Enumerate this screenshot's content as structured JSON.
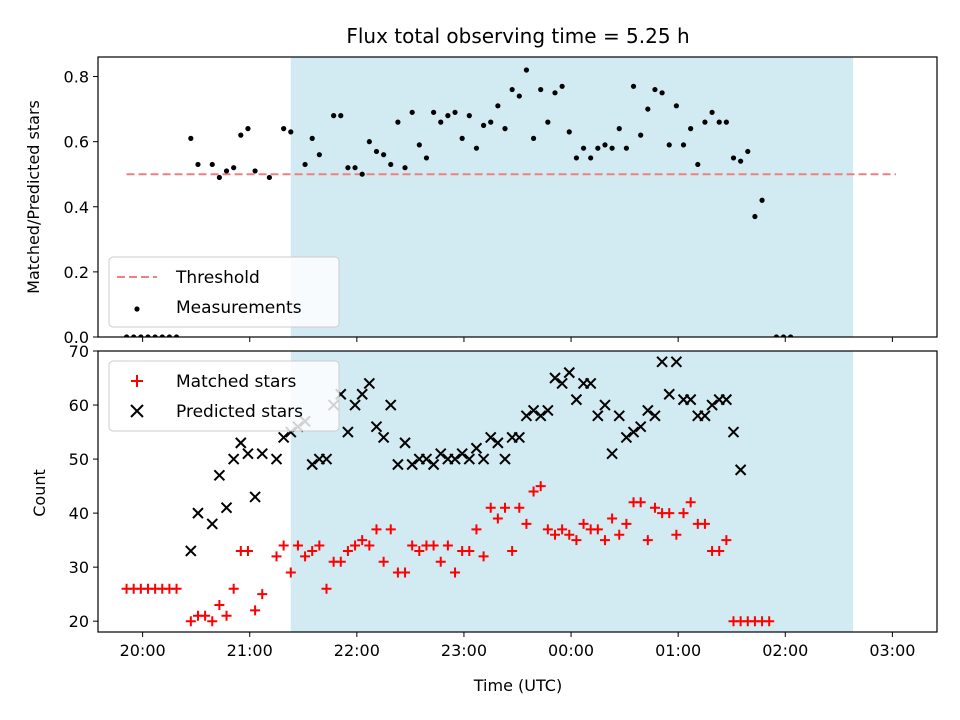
{
  "chart_data": [
    {
      "type": "scatter",
      "title": "Flux total observing time = 5.25 h",
      "xlabel": "",
      "ylabel": "Matched/Predicted stars",
      "xlim": [
        "19:35",
        "03:25"
      ],
      "ylim": [
        0,
        0.86
      ],
      "yticks": [
        "0.0",
        "0.2",
        "0.4",
        "0.6",
        "0.8"
      ],
      "yticks_values": [
        0,
        0.2,
        0.4,
        0.6,
        0.8
      ],
      "shaded_interval": [
        "21:23",
        "02:38"
      ],
      "shade_color": "#add8e6",
      "legend_position": "lower-left",
      "threshold": {
        "name": "Threshold",
        "value": 0.5,
        "x_range": [
          "19:51",
          "03:02"
        ],
        "color": "#f08080"
      },
      "series": [
        {
          "name": "Measurements",
          "color": "#000000",
          "marker": "dot",
          "points": [
            [
              "19:51",
              0
            ],
            [
              "19:55",
              0
            ],
            [
              "19:59",
              0
            ],
            [
              "20:03",
              0
            ],
            [
              "20:07",
              0
            ],
            [
              "20:11",
              0
            ],
            [
              "20:15",
              0
            ],
            [
              "20:19",
              0
            ],
            [
              "20:27",
              0.61
            ],
            [
              "20:31",
              0.53
            ],
            [
              "20:39",
              0.53
            ],
            [
              "20:43",
              0.49
            ],
            [
              "20:47",
              0.51
            ],
            [
              "20:51",
              0.52
            ],
            [
              "20:55",
              0.62
            ],
            [
              "20:59",
              0.64
            ],
            [
              "21:03",
              0.51
            ],
            [
              "21:11",
              0.49
            ],
            [
              "21:19",
              0.64
            ],
            [
              "21:23",
              0.63
            ],
            [
              "21:31",
              0.53
            ],
            [
              "21:35",
              0.61
            ],
            [
              "21:39",
              0.56
            ],
            [
              "21:47",
              0.68
            ],
            [
              "21:51",
              0.68
            ],
            [
              "21:55",
              0.52
            ],
            [
              "21:59",
              0.52
            ],
            [
              "22:03",
              0.5
            ],
            [
              "22:07",
              0.6
            ],
            [
              "22:11",
              0.57
            ],
            [
              "22:15",
              0.56
            ],
            [
              "22:19",
              0.53
            ],
            [
              "22:23",
              0.66
            ],
            [
              "22:27",
              0.52
            ],
            [
              "22:31",
              0.69
            ],
            [
              "22:35",
              0.59
            ],
            [
              "22:39",
              0.55
            ],
            [
              "22:43",
              0.69
            ],
            [
              "22:47",
              0.66
            ],
            [
              "22:51",
              0.68
            ],
            [
              "22:55",
              0.69
            ],
            [
              "22:59",
              0.61
            ],
            [
              "23:03",
              0.68
            ],
            [
              "23:07",
              0.58
            ],
            [
              "23:11",
              0.65
            ],
            [
              "23:15",
              0.66
            ],
            [
              "23:19",
              0.71
            ],
            [
              "23:23",
              0.64
            ],
            [
              "23:27",
              0.76
            ],
            [
              "23:31",
              0.74
            ],
            [
              "23:35",
              0.82
            ],
            [
              "23:39",
              0.61
            ],
            [
              "23:43",
              0.76
            ],
            [
              "23:47",
              0.66
            ],
            [
              "23:51",
              0.75
            ],
            [
              "23:55",
              0.77
            ],
            [
              "23:59",
              0.63
            ],
            [
              "00:03",
              0.55
            ],
            [
              "00:07",
              0.58
            ],
            [
              "00:11",
              0.55
            ],
            [
              "00:15",
              0.58
            ],
            [
              "00:19",
              0.59
            ],
            [
              "00:23",
              0.58
            ],
            [
              "00:27",
              0.64
            ],
            [
              "00:31",
              0.58
            ],
            [
              "00:35",
              0.77
            ],
            [
              "00:39",
              0.62
            ],
            [
              "00:43",
              0.7
            ],
            [
              "00:47",
              0.76
            ],
            [
              "00:51",
              0.75
            ],
            [
              "00:55",
              0.59
            ],
            [
              "00:59",
              0.71
            ],
            [
              "01:03",
              0.59
            ],
            [
              "01:07",
              0.64
            ],
            [
              "01:11",
              0.53
            ],
            [
              "01:15",
              0.66
            ],
            [
              "01:19",
              0.69
            ],
            [
              "01:23",
              0.66
            ],
            [
              "01:27",
              0.66
            ],
            [
              "01:31",
              0.55
            ],
            [
              "01:35",
              0.54
            ],
            [
              "01:39",
              0.57
            ],
            [
              "01:43",
              0.37
            ],
            [
              "01:47",
              0.42
            ],
            [
              "01:55",
              0
            ],
            [
              "01:59",
              0
            ],
            [
              "02:03",
              0
            ]
          ]
        }
      ]
    },
    {
      "type": "scatter",
      "title": "",
      "xlabel": "Time (UTC)",
      "ylabel": "Count",
      "xlim": [
        "19:35",
        "03:25"
      ],
      "ylim": [
        18,
        70
      ],
      "yticks": [
        "20",
        "30",
        "40",
        "50",
        "60",
        "70"
      ],
      "yticks_values": [
        20,
        30,
        40,
        50,
        60,
        70
      ],
      "xticks": [
        "20:00",
        "21:00",
        "22:00",
        "23:00",
        "00:00",
        "01:00",
        "02:00",
        "03:00"
      ],
      "shaded_interval": [
        "21:23",
        "02:38"
      ],
      "shade_color": "#add8e6",
      "legend_position": "upper-left",
      "series": [
        {
          "name": "Matched stars",
          "color": "#ff0000",
          "marker": "plus",
          "points": [
            [
              "19:51",
              26
            ],
            [
              "19:55",
              26
            ],
            [
              "19:59",
              26
            ],
            [
              "20:03",
              26
            ],
            [
              "20:07",
              26
            ],
            [
              "20:11",
              26
            ],
            [
              "20:15",
              26
            ],
            [
              "20:19",
              26
            ],
            [
              "20:27",
              20
            ],
            [
              "20:31",
              21
            ],
            [
              "20:35",
              21
            ],
            [
              "20:39",
              20
            ],
            [
              "20:43",
              23
            ],
            [
              "20:47",
              21
            ],
            [
              "20:51",
              26
            ],
            [
              "20:55",
              33
            ],
            [
              "20:59",
              33
            ],
            [
              "21:03",
              22
            ],
            [
              "21:07",
              25
            ],
            [
              "21:15",
              32
            ],
            [
              "21:19",
              34
            ],
            [
              "21:23",
              29
            ],
            [
              "21:27",
              34
            ],
            [
              "21:31",
              32
            ],
            [
              "21:35",
              33
            ],
            [
              "21:39",
              34
            ],
            [
              "21:43",
              26
            ],
            [
              "21:47",
              31
            ],
            [
              "21:51",
              31
            ],
            [
              "21:55",
              33
            ],
            [
              "21:59",
              34
            ],
            [
              "22:03",
              35
            ],
            [
              "22:07",
              34
            ],
            [
              "22:11",
              37
            ],
            [
              "22:15",
              31
            ],
            [
              "22:19",
              37
            ],
            [
              "22:23",
              29
            ],
            [
              "22:27",
              29
            ],
            [
              "22:31",
              34
            ],
            [
              "22:35",
              33
            ],
            [
              "22:39",
              34
            ],
            [
              "22:43",
              34
            ],
            [
              "22:47",
              31
            ],
            [
              "22:51",
              34
            ],
            [
              "22:55",
              29
            ],
            [
              "22:59",
              33
            ],
            [
              "23:03",
              33
            ],
            [
              "23:07",
              37
            ],
            [
              "23:11",
              32
            ],
            [
              "23:15",
              41
            ],
            [
              "23:19",
              39
            ],
            [
              "23:23",
              41
            ],
            [
              "23:27",
              33
            ],
            [
              "23:31",
              41
            ],
            [
              "23:35",
              38
            ],
            [
              "23:39",
              44
            ],
            [
              "23:43",
              45
            ],
            [
              "23:47",
              37
            ],
            [
              "23:51",
              36
            ],
            [
              "23:55",
              37
            ],
            [
              "23:59",
              36
            ],
            [
              "00:03",
              35
            ],
            [
              "00:07",
              38
            ],
            [
              "00:11",
              37
            ],
            [
              "00:15",
              37
            ],
            [
              "00:19",
              35
            ],
            [
              "00:23",
              39
            ],
            [
              "00:27",
              36
            ],
            [
              "00:31",
              38
            ],
            [
              "00:35",
              42
            ],
            [
              "00:39",
              42
            ],
            [
              "00:43",
              35
            ],
            [
              "00:47",
              41
            ],
            [
              "00:51",
              40
            ],
            [
              "00:55",
              40
            ],
            [
              "00:59",
              36
            ],
            [
              "01:03",
              40
            ],
            [
              "01:07",
              42
            ],
            [
              "01:11",
              38
            ],
            [
              "01:15",
              38
            ],
            [
              "01:19",
              33
            ],
            [
              "01:23",
              33
            ],
            [
              "01:27",
              35
            ],
            [
              "01:31",
              20
            ],
            [
              "01:35",
              20
            ],
            [
              "01:39",
              20
            ],
            [
              "01:43",
              20
            ],
            [
              "01:47",
              20
            ],
            [
              "01:51",
              20
            ]
          ]
        },
        {
          "name": "Predicted stars",
          "color": "#000000",
          "marker": "x",
          "points": [
            [
              "20:27",
              33
            ],
            [
              "20:31",
              40
            ],
            [
              "20:39",
              38
            ],
            [
              "20:43",
              47
            ],
            [
              "20:47",
              41
            ],
            [
              "20:51",
              50
            ],
            [
              "20:55",
              53
            ],
            [
              "20:59",
              51
            ],
            [
              "21:03",
              43
            ],
            [
              "21:07",
              51
            ],
            [
              "21:15",
              50
            ],
            [
              "21:19",
              54
            ],
            [
              "21:23",
              55
            ],
            [
              "21:27",
              56
            ],
            [
              "21:31",
              57
            ],
            [
              "21:35",
              49
            ],
            [
              "21:39",
              50
            ],
            [
              "21:43",
              50
            ],
            [
              "21:47",
              60
            ],
            [
              "21:51",
              62
            ],
            [
              "21:55",
              55
            ],
            [
              "21:59",
              60
            ],
            [
              "22:03",
              62
            ],
            [
              "22:07",
              64
            ],
            [
              "22:11",
              56
            ],
            [
              "22:15",
              54
            ],
            [
              "22:19",
              60
            ],
            [
              "22:23",
              49
            ],
            [
              "22:27",
              53
            ],
            [
              "22:31",
              49
            ],
            [
              "22:35",
              50
            ],
            [
              "22:39",
              50
            ],
            [
              "22:43",
              49
            ],
            [
              "22:47",
              51
            ],
            [
              "22:51",
              50
            ],
            [
              "22:55",
              50
            ],
            [
              "22:59",
              51
            ],
            [
              "23:03",
              50
            ],
            [
              "23:07",
              52
            ],
            [
              "23:11",
              50
            ],
            [
              "23:15",
              54
            ],
            [
              "23:19",
              53
            ],
            [
              "23:23",
              50
            ],
            [
              "23:27",
              54
            ],
            [
              "23:31",
              54
            ],
            [
              "23:35",
              58
            ],
            [
              "23:39",
              59
            ],
            [
              "23:43",
              58
            ],
            [
              "23:47",
              59
            ],
            [
              "23:51",
              65
            ],
            [
              "23:55",
              64
            ],
            [
              "23:59",
              66
            ],
            [
              "00:03",
              61
            ],
            [
              "00:07",
              64
            ],
            [
              "00:11",
              64
            ],
            [
              "00:15",
              58
            ],
            [
              "00:19",
              60
            ],
            [
              "00:23",
              51
            ],
            [
              "00:27",
              58
            ],
            [
              "00:31",
              54
            ],
            [
              "00:35",
              55
            ],
            [
              "00:39",
              56
            ],
            [
              "00:43",
              59
            ],
            [
              "00:47",
              58
            ],
            [
              "00:51",
              68
            ],
            [
              "00:55",
              62
            ],
            [
              "00:59",
              68
            ],
            [
              "01:03",
              61
            ],
            [
              "01:07",
              61
            ],
            [
              "01:11",
              58
            ],
            [
              "01:15",
              58
            ],
            [
              "01:19",
              60
            ],
            [
              "01:23",
              61
            ],
            [
              "01:27",
              61
            ],
            [
              "01:31",
              55
            ],
            [
              "01:35",
              48
            ]
          ]
        }
      ]
    }
  ]
}
